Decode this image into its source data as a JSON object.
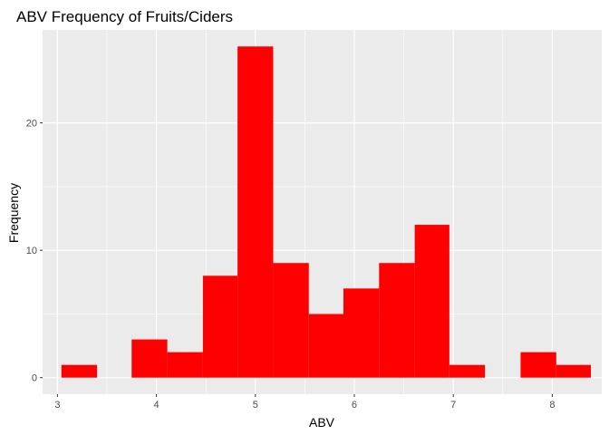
{
  "chart_data": {
    "type": "bar",
    "title": "ABV Frequency of Fruits/Ciders",
    "xlabel": "ABV",
    "ylabel": "Frequency",
    "xlim": [
      2.85,
      8.5
    ],
    "ylim": [
      -1.3,
      27.3
    ],
    "x_ticks": [
      "3",
      "4",
      "5",
      "6",
      "7",
      "8"
    ],
    "y_ticks": [
      "0",
      "10",
      "20"
    ],
    "bin_width": 0.357,
    "bins": [
      {
        "x_start": 3.04,
        "x_end": 3.4,
        "count": 1
      },
      {
        "x_start": 3.4,
        "x_end": 3.75,
        "count": 0
      },
      {
        "x_start": 3.75,
        "x_end": 4.11,
        "count": 3
      },
      {
        "x_start": 4.11,
        "x_end": 4.47,
        "count": 2
      },
      {
        "x_start": 4.47,
        "x_end": 4.82,
        "count": 8
      },
      {
        "x_start": 4.82,
        "x_end": 5.18,
        "count": 26
      },
      {
        "x_start": 5.18,
        "x_end": 5.54,
        "count": 9
      },
      {
        "x_start": 5.54,
        "x_end": 5.89,
        "count": 5
      },
      {
        "x_start": 5.89,
        "x_end": 6.25,
        "count": 7
      },
      {
        "x_start": 6.25,
        "x_end": 6.61,
        "count": 9
      },
      {
        "x_start": 6.61,
        "x_end": 6.96,
        "count": 12
      },
      {
        "x_start": 6.96,
        "x_end": 7.32,
        "count": 1
      },
      {
        "x_start": 7.32,
        "x_end": 7.68,
        "count": 0
      },
      {
        "x_start": 7.68,
        "x_end": 8.04,
        "count": 2
      },
      {
        "x_start": 8.04,
        "x_end": 8.39,
        "count": 1
      }
    ],
    "bar_color": "#FF0000",
    "panel_background": "#EBEBEB",
    "grid_color": "#FFFFFF",
    "grid": true,
    "legend": "none"
  }
}
